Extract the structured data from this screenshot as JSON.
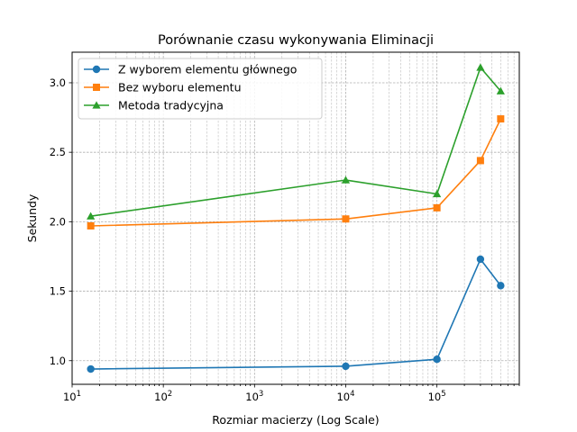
{
  "chart_data": {
    "type": "line",
    "title": "Porównanie czasu wykonywania Eliminacji",
    "xlabel": "Rozmiar macierzy (Log Scale)",
    "ylabel": "Sekundy",
    "xscale": "log",
    "xlim": [
      10,
      800000
    ],
    "ylim": [
      0.83,
      3.22
    ],
    "x_ticks": [
      {
        "value": 10,
        "base": "10",
        "exp": "1"
      },
      {
        "value": 100,
        "base": "10",
        "exp": "2"
      },
      {
        "value": 1000,
        "base": "10",
        "exp": "3"
      },
      {
        "value": 10000,
        "base": "10",
        "exp": "4"
      },
      {
        "value": 100000,
        "base": "10",
        "exp": "5"
      }
    ],
    "y_ticks": [
      {
        "value": 1.0,
        "label": "1.0"
      },
      {
        "value": 1.5,
        "label": "1.5"
      },
      {
        "value": 2.0,
        "label": "2.0"
      },
      {
        "value": 2.5,
        "label": "2.5"
      },
      {
        "value": 3.0,
        "label": "3.0"
      }
    ],
    "grid": true,
    "legend_position": "top-left",
    "x": [
      16,
      10000,
      100000,
      300000,
      500000
    ],
    "series": [
      {
        "name": "Z wyborem elementu głównego",
        "marker": "circle",
        "color": "#1f77b4",
        "values": [
          0.94,
          0.96,
          1.01,
          1.73,
          1.54
        ]
      },
      {
        "name": "Bez wyboru elementu",
        "marker": "square",
        "color": "#ff7f0e",
        "values": [
          1.97,
          2.02,
          2.1,
          2.44,
          2.74
        ]
      },
      {
        "name": "Metoda tradycyjna",
        "marker": "triangle",
        "color": "#2ca02c",
        "values": [
          2.04,
          2.3,
          2.2,
          3.11,
          2.94
        ]
      }
    ]
  }
}
